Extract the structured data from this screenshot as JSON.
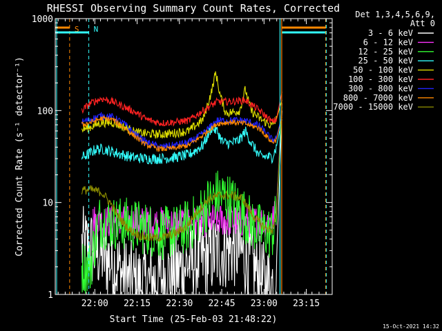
{
  "chart_data": {
    "type": "line",
    "title": "RHESSI Observing Summary Count Rates, Corrected",
    "xlabel": "Start Time (25-Feb-03 21:48:22)",
    "ylabel": "Corrected Count Rate (s⁻¹ detector⁻¹)",
    "yscale": "log",
    "ylim": [
      1,
      1000
    ],
    "xlim_minutes_after_start": [
      -2.4,
      95.8
    ],
    "yticks": [
      {
        "value": 1,
        "label": "1"
      },
      {
        "value": 10,
        "label": "10"
      },
      {
        "value": 100,
        "label": "100"
      },
      {
        "value": 1000,
        "label": "1000"
      }
    ],
    "xticks": [
      {
        "minutes": 11.633,
        "label": "22:00"
      },
      {
        "minutes": 26.633,
        "label": "22:15"
      },
      {
        "minutes": 41.633,
        "label": "22:30"
      },
      {
        "minutes": 56.633,
        "label": "22:45"
      },
      {
        "minutes": 71.633,
        "label": "23:00"
      },
      {
        "minutes": 86.633,
        "label": "23:15"
      }
    ],
    "legend_placement": "right",
    "legend_header": [
      "Det 1,3,4,5,6,9,",
      "Att 0"
    ],
    "series": [
      {
        "name": "3 - 6 keV",
        "color": "#ffffff",
        "x": [
          7,
          10,
          14,
          18,
          22,
          26,
          30,
          35,
          40,
          45,
          50,
          54,
          58,
          62,
          66,
          70,
          72,
          74.5,
          76,
          78
        ],
        "y": [
          3.3,
          3.2,
          2.8,
          2.2,
          1.6,
          1.3,
          1.3,
          1.5,
          1.7,
          2.2,
          2.4,
          2.8,
          3.1,
          3.2,
          2.4,
          1.6,
          1.3,
          1.3,
          2,
          100
        ],
        "noise": 0.45
      },
      {
        "name": "6 - 12 keV",
        "color": "#ff33ff",
        "x": [
          11,
          14,
          20,
          26,
          32,
          38,
          44,
          50,
          54,
          58,
          62,
          66,
          70,
          74.5,
          76,
          78
        ],
        "y": [
          6.4,
          6.2,
          6.2,
          6.1,
          6,
          6,
          6,
          6.2,
          6.5,
          6.4,
          6.3,
          6.2,
          6.2,
          6.3,
          8,
          120
        ],
        "noise": 0.18
      },
      {
        "name": "12 - 25 keV",
        "color": "#33ff33",
        "x": [
          7,
          8.5,
          10,
          13,
          18,
          24,
          30,
          36,
          42,
          47,
          52,
          55,
          58,
          62,
          66,
          70,
          74.5,
          76,
          78
        ],
        "y": [
          2,
          2,
          2,
          6.3,
          6,
          5.8,
          5.2,
          4.6,
          5,
          6.2,
          10,
          12,
          11.5,
          9,
          6.5,
          5,
          4.6,
          7,
          110
        ],
        "noise": 0.3
      },
      {
        "name": "25 - 50 keV",
        "color": "#33ffff",
        "x": [
          7,
          9,
          12,
          15,
          20,
          25,
          30,
          35,
          40,
          45,
          50,
          53,
          55,
          57,
          60,
          63,
          65,
          67,
          70,
          74.5,
          76,
          78
        ],
        "y": [
          31,
          33,
          38,
          38,
          34,
          31,
          30,
          30,
          31,
          33,
          42,
          65,
          60,
          45,
          44,
          48,
          60,
          45,
          32,
          31,
          40,
          80
        ],
        "noise": 0.06
      },
      {
        "name": "50 - 100 keV",
        "color": "#dddd00",
        "x": [
          7,
          10,
          14,
          18,
          22,
          26,
          30,
          35,
          40,
          45,
          50,
          53,
          54.5,
          56,
          58,
          60,
          63,
          65,
          67,
          70,
          74.5,
          76,
          78
        ],
        "y": [
          62,
          66,
          74,
          74,
          66,
          58,
          56,
          55,
          57,
          60,
          80,
          160,
          260,
          150,
          95,
          95,
          100,
          170,
          100,
          82,
          68,
          80,
          130
        ],
        "noise": 0.05
      },
      {
        "name": "100 - 300 keV",
        "color": "#ff2222",
        "x": [
          7,
          10,
          14,
          18,
          22,
          26,
          30,
          35,
          40,
          45,
          50,
          55,
          60,
          65,
          70,
          74.5,
          76,
          78
        ],
        "y": [
          100,
          120,
          135,
          125,
          110,
          96,
          80,
          73,
          75,
          78,
          100,
          125,
          125,
          130,
          100,
          75,
          80,
          160
        ],
        "noise": 0.04
      },
      {
        "name": "300 - 800 keV",
        "color": "#2222ff",
        "x": [
          7,
          10,
          14,
          18,
          22,
          26,
          30,
          35,
          40,
          45,
          50,
          55,
          60,
          65,
          70,
          74.5,
          76,
          78
        ],
        "y": [
          75,
          80,
          88,
          85,
          72,
          55,
          45,
          40,
          42,
          45,
          56,
          78,
          78,
          78,
          68,
          48,
          50,
          90
        ],
        "noise": 0.04
      },
      {
        "name": "800 - 7000 keV",
        "color": "#ff8800",
        "x": [
          7,
          10,
          14,
          18,
          22,
          26,
          30,
          35,
          40,
          45,
          50,
          55,
          60,
          65,
          70,
          74.5,
          76,
          78
        ],
        "y": [
          70,
          74,
          82,
          80,
          65,
          52,
          42,
          38,
          39,
          42,
          54,
          72,
          75,
          72,
          64,
          45,
          48,
          85
        ],
        "noise": 0.03
      },
      {
        "name": "7000 - 15000 keV",
        "color": "#888800",
        "x": [
          7,
          10,
          14,
          17,
          20,
          24,
          28,
          32,
          36,
          40,
          44,
          48,
          52,
          56,
          60,
          64,
          68,
          72,
          74.5,
          76,
          78
        ],
        "y": [
          13.5,
          13.8,
          13,
          10,
          7,
          5,
          4.3,
          4.1,
          4.2,
          4.6,
          5.4,
          8,
          11,
          12,
          12,
          11,
          7,
          5.3,
          5,
          7,
          120
        ],
        "noise": 0.05
      }
    ],
    "annotations": [
      {
        "label": "S",
        "color": "#ff8800",
        "position_minutes": 2.7
      },
      {
        "label": "N",
        "color": "#33ffff",
        "position_minutes": 9.5
      }
    ],
    "grid": false,
    "footer_timestamp": "15-Oct-2021 14:32"
  }
}
